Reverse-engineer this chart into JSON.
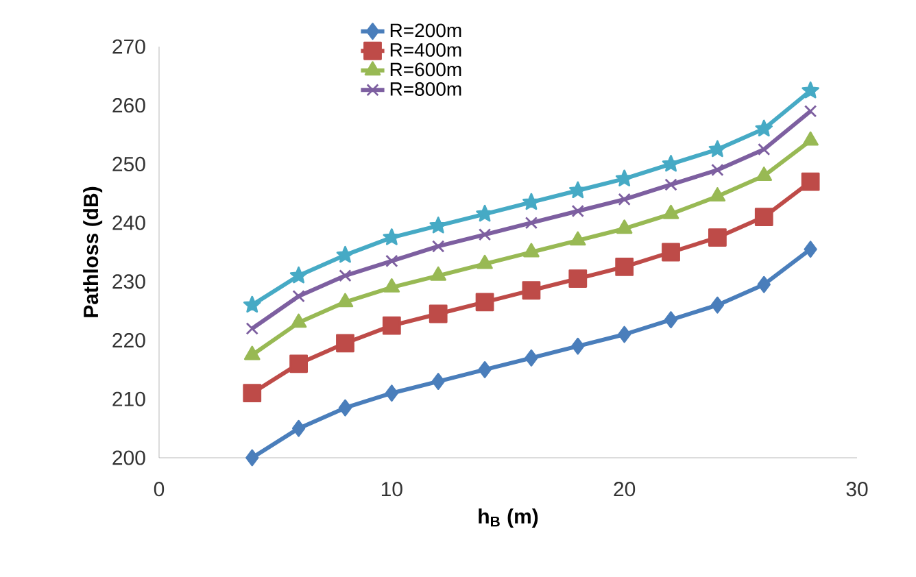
{
  "chart_data": {
    "type": "line",
    "xlabel": "h$_{B}$ (m)",
    "ylabel": "Pathloss (dB)",
    "x": [
      4,
      6,
      8,
      10,
      12,
      14,
      16,
      18,
      20,
      22,
      24,
      26,
      28
    ],
    "xlim": [
      0,
      30
    ],
    "xticks": [
      0,
      10,
      20,
      30
    ],
    "ylim": [
      200,
      270
    ],
    "yticks": [
      200,
      210,
      220,
      230,
      240,
      250,
      260,
      270
    ],
    "grid": false,
    "legend": "top",
    "series": [
      {
        "name": "R=200m",
        "color": "#4a7ebb",
        "marker": "diamond",
        "values": [
          200,
          205,
          208.5,
          211,
          213,
          215,
          217,
          219,
          221,
          223.5,
          226,
          229.5,
          235.5
        ]
      },
      {
        "name": "R=400m",
        "color": "#be4b48",
        "marker": "square",
        "values": [
          211,
          216,
          219.5,
          222.5,
          224.5,
          226.5,
          228.5,
          230.5,
          232.5,
          235,
          237.5,
          241,
          247
        ]
      },
      {
        "name": "R=600m",
        "color": "#98b954",
        "marker": "triangle",
        "values": [
          217.5,
          223,
          226.5,
          229,
          231,
          233,
          235,
          237,
          239,
          241.5,
          244.5,
          248,
          254
        ]
      },
      {
        "name": "R=800m",
        "color": "#7d5fa0",
        "marker": "cross",
        "values": [
          222,
          227.5,
          231,
          233.5,
          236,
          238,
          240,
          242,
          244,
          246.5,
          249,
          252.5,
          259
        ]
      },
      {
        "color": "#46aac5",
        "marker": "star",
        "values": [
          226,
          231,
          234.5,
          237.5,
          239.5,
          241.5,
          243.5,
          245.5,
          247.5,
          250,
          252.5,
          256,
          262.5
        ]
      }
    ]
  }
}
